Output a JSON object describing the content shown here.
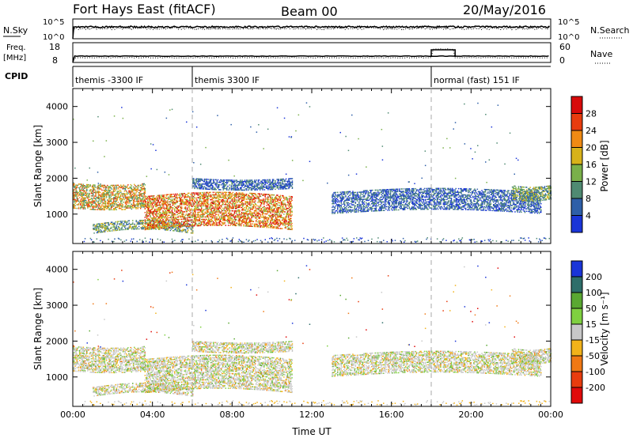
{
  "header": {
    "title": "Fort Hays East (fitACF)",
    "beam": "Beam 00",
    "date": "20/May/2016"
  },
  "aux_panels": {
    "nsky_label": "N.Sky",
    "nsearch_label": "N.Search",
    "freq_label_1": "Freq.",
    "freq_label_2": "[MHz]",
    "nave_label": "Nave",
    "cpid_label": "CPID",
    "noise_ticks_left": [
      "10^5",
      "10^0"
    ],
    "noise_ticks_right": [
      "10^5",
      "10^0"
    ],
    "freq_ticks": [
      "18",
      "8"
    ],
    "nave_ticks": [
      "60",
      "0"
    ]
  },
  "cpid_segments": [
    {
      "start_hour": 0,
      "label": "themis -3300 IF"
    },
    {
      "start_hour": 6,
      "label": "themis 3300 IF"
    },
    {
      "start_hour": 18,
      "label": "normal (fast) 151 IF"
    }
  ],
  "chart_data": [
    {
      "type": "heatmap",
      "name": "power",
      "ylabel": "Slant Range [km]",
      "xlabel": "",
      "xlim": [
        0,
        24
      ],
      "ylim": [
        180,
        4500
      ],
      "yticks": [
        1000,
        2000,
        3000,
        4000
      ],
      "colorbar": {
        "label": "Power [dB]",
        "ticks": [
          "4",
          "8",
          "12",
          "16",
          "20",
          "24",
          "28"
        ],
        "colors": [
          "#1a35d8",
          "#2e5fa8",
          "#4f8a72",
          "#7ab04a",
          "#d8b21a",
          "#f08a14",
          "#e83c0e",
          "#d80a0a"
        ]
      },
      "echo_regions": [
        {
          "t0": 0.0,
          "t1": 3.6,
          "r0": 1150,
          "r1": 1850,
          "level": "medium-high"
        },
        {
          "t0": 1.0,
          "t1": 6.0,
          "r0": 450,
          "r1": 700,
          "level": "low-medium"
        },
        {
          "t0": 3.6,
          "t1": 11.0,
          "r0": 550,
          "r1": 1500,
          "level": "high"
        },
        {
          "t0": 6.0,
          "t1": 11.0,
          "r0": 1700,
          "r1": 2000,
          "level": "low"
        },
        {
          "t0": 13.0,
          "t1": 23.5,
          "r0": 1000,
          "r1": 1600,
          "level": "low"
        },
        {
          "t0": 22.0,
          "t1": 24.0,
          "r0": 1400,
          "r1": 1800,
          "level": "low-medium"
        }
      ]
    },
    {
      "type": "heatmap",
      "name": "velocity",
      "ylabel": "Slant Range [km]",
      "xlabel": "Time UT",
      "xlim": [
        0,
        24
      ],
      "ylim": [
        180,
        4500
      ],
      "yticks": [
        1000,
        2000,
        3000,
        4000
      ],
      "xticks": [
        "00:00",
        "04:00",
        "08:00",
        "12:00",
        "16:00",
        "20:00",
        "00:00"
      ],
      "colorbar": {
        "label": "Velocity [m s⁻¹]",
        "ticks": [
          "200",
          "100",
          "50",
          "15",
          "-15",
          "-50",
          "-100",
          "-200"
        ],
        "colors": [
          "#1a35d8",
          "#2e6e6a",
          "#5aa832",
          "#7fd040",
          "#c8c8c8",
          "#f2b21a",
          "#f07814",
          "#e83c0e",
          "#e00a0a"
        ]
      }
    }
  ]
}
